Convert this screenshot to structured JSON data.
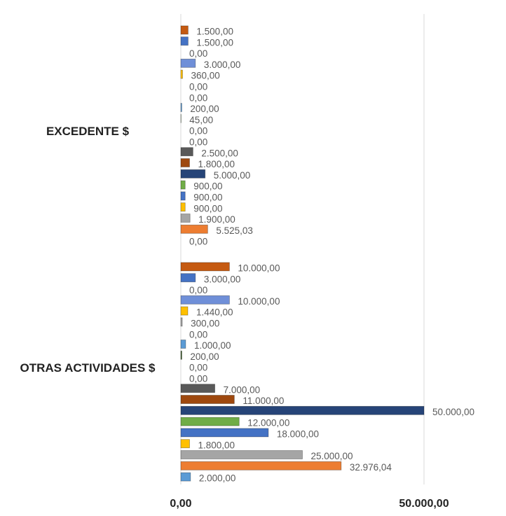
{
  "chart_data": {
    "type": "hbar",
    "categories": [
      "EXCEDENTE $",
      "OTRAS ACTIVIDADES $"
    ],
    "xlim": [
      0,
      50000
    ],
    "xticks": [
      {
        "value": 0,
        "label": "0,00"
      },
      {
        "value": 50000,
        "label": "50.000,00"
      }
    ],
    "grid": true,
    "series": [
      {
        "color": "#c55a11",
        "values": [
          1500,
          10000
        ],
        "value_labels": [
          "1.500,00",
          "10.000,00"
        ]
      },
      {
        "color": "#4472c4",
        "values": [
          1500,
          3000
        ],
        "value_labels": [
          "1.500,00",
          "3.000,00"
        ]
      },
      {
        "color": "#70ad47",
        "values": [
          0,
          0
        ],
        "value_labels": [
          "0,00",
          "0,00"
        ]
      },
      {
        "color": "#6f8fd8",
        "values": [
          3000,
          10000
        ],
        "value_labels": [
          "3.000,00",
          "10.000,00"
        ]
      },
      {
        "color": "#ffc000",
        "values": [
          360,
          1440
        ],
        "value_labels": [
          "360,00",
          "1.440,00"
        ]
      },
      {
        "color": "#a5a5a5",
        "values": [
          0,
          300
        ],
        "value_labels": [
          "0,00",
          "300,00"
        ]
      },
      {
        "color": "#ed7d31",
        "values": [
          0,
          0
        ],
        "value_labels": [
          "0,00",
          "0,00"
        ]
      },
      {
        "color": "#5b9bd5",
        "values": [
          200,
          1000
        ],
        "value_labels": [
          "200,00",
          "1.000,00"
        ]
      },
      {
        "color": "#375623",
        "values": [
          45,
          200
        ],
        "value_labels": [
          "45,00",
          "200,00"
        ]
      },
      {
        "color": "#1f3864",
        "values": [
          0,
          0
        ],
        "value_labels": [
          "0,00",
          "0,00"
        ]
      },
      {
        "color": "#843c0c",
        "values": [
          0,
          0
        ],
        "value_labels": [
          "0,00",
          "0,00"
        ]
      },
      {
        "color": "#595959",
        "values": [
          2500,
          7000
        ],
        "value_labels": [
          "2.500,00",
          "7.000,00"
        ]
      },
      {
        "color": "#9e480e",
        "values": [
          1800,
          11000
        ],
        "value_labels": [
          "1.800,00",
          "11.000,00"
        ]
      },
      {
        "color": "#264478",
        "values": [
          5000,
          50000
        ],
        "value_labels": [
          "5.000,00",
          "50.000,00"
        ]
      },
      {
        "color": "#70ad47",
        "values": [
          900,
          12000
        ],
        "value_labels": [
          "900,00",
          "12.000,00"
        ]
      },
      {
        "color": "#4472c4",
        "values": [
          900,
          18000
        ],
        "value_labels": [
          "900,00",
          "18.000,00"
        ]
      },
      {
        "color": "#ffc000",
        "values": [
          900,
          1800
        ],
        "value_labels": [
          "900,00",
          "1.800,00"
        ]
      },
      {
        "color": "#a5a5a5",
        "values": [
          1900,
          25000
        ],
        "value_labels": [
          "1.900,00",
          "25.000,00"
        ]
      },
      {
        "color": "#ed7d31",
        "values": [
          5525.03,
          32976.04
        ],
        "value_labels": [
          "5.525,03",
          "32.976,04"
        ]
      },
      {
        "color": "#5b9bd5",
        "values": [
          0,
          2000
        ],
        "value_labels": [
          "0,00",
          "2.000,00"
        ]
      }
    ]
  }
}
